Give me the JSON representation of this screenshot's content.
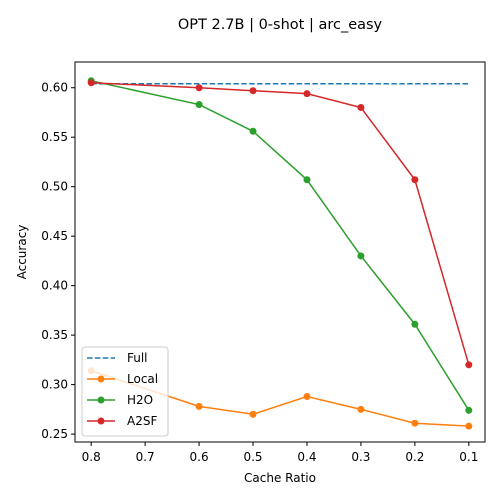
{
  "chart_data": {
    "type": "line",
    "title": "OPT 2.7B | 0-shot | arc_easy",
    "xlabel": "Cache Ratio",
    "ylabel": "Accuracy",
    "x_ticks": [
      0.8,
      0.7,
      0.6,
      0.5,
      0.4,
      0.3,
      0.2,
      0.1
    ],
    "x_tick_labels": [
      "0.8",
      "0.7",
      "0.6",
      "0.5",
      "0.4",
      "0.3",
      "0.2",
      "0.1"
    ],
    "x_inverted": true,
    "xlim": [
      0.83,
      0.07
    ],
    "ylim": [
      0.242,
      0.626
    ],
    "y_ticks": [
      0.25,
      0.3,
      0.35,
      0.4,
      0.45,
      0.5,
      0.55,
      0.6
    ],
    "y_tick_labels": [
      "0.25",
      "0.30",
      "0.35",
      "0.40",
      "0.45",
      "0.50",
      "0.55",
      "0.60"
    ],
    "grid": false,
    "legend_position": "lower-left",
    "series": [
      {
        "name": "Full",
        "color": "#1f77b4",
        "linestyle": "dashed",
        "marker": "none",
        "x": [
          0.8,
          0.1
        ],
        "y": [
          0.604,
          0.604
        ]
      },
      {
        "name": "Local",
        "color": "#ff7f0e",
        "linestyle": "solid",
        "marker": "circle",
        "x": [
          0.8,
          0.6,
          0.5,
          0.4,
          0.3,
          0.2,
          0.1
        ],
        "y": [
          0.314,
          0.278,
          0.27,
          0.288,
          0.275,
          0.261,
          0.258
        ]
      },
      {
        "name": "H2O",
        "color": "#2ca02c",
        "linestyle": "solid",
        "marker": "circle",
        "x": [
          0.8,
          0.6,
          0.5,
          0.4,
          0.3,
          0.2,
          0.1
        ],
        "y": [
          0.607,
          0.583,
          0.556,
          0.507,
          0.43,
          0.361,
          0.274
        ]
      },
      {
        "name": "A2SF",
        "color": "#d62728",
        "linestyle": "solid",
        "marker": "circle",
        "x": [
          0.8,
          0.6,
          0.5,
          0.4,
          0.3,
          0.2,
          0.1
        ],
        "y": [
          0.605,
          0.6,
          0.597,
          0.594,
          0.58,
          0.507,
          0.32
        ]
      }
    ]
  }
}
